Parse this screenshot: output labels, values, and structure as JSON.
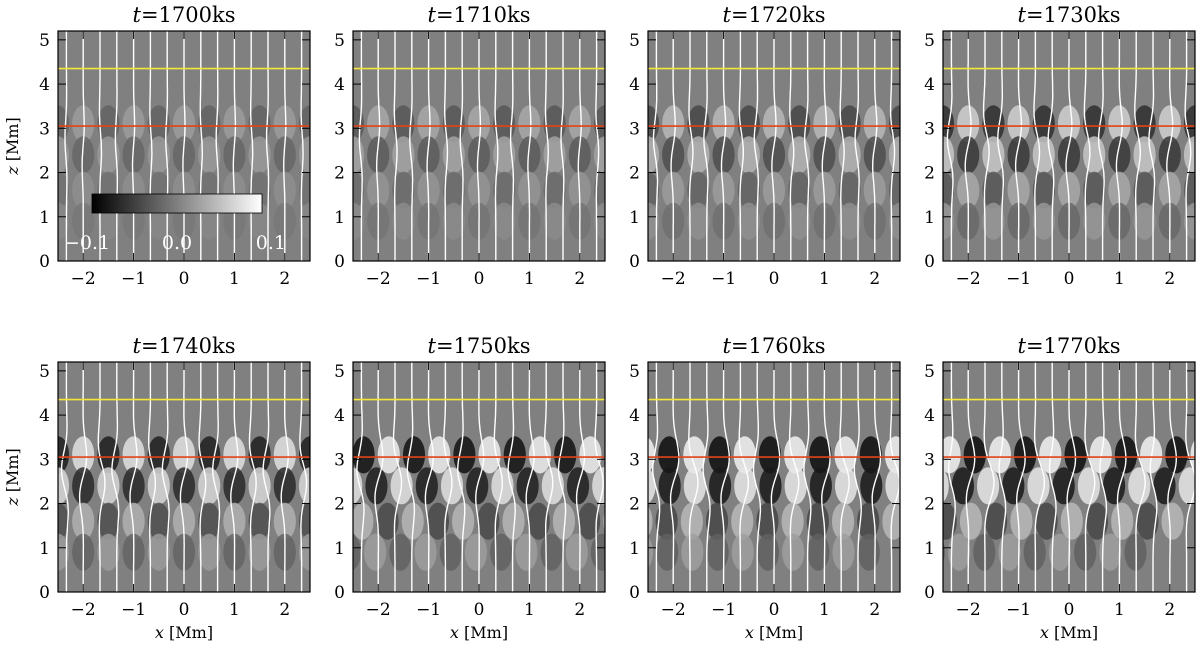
{
  "figure": {
    "xlabel_var": "x",
    "xlabel_unit": "[Mm]",
    "ylabel_var": "z",
    "ylabel_unit": "[Mm]",
    "colorbar": {
      "ticks": [
        "−0.1",
        "0.0",
        "0.1"
      ],
      "range": [
        -0.1,
        0.1
      ]
    },
    "colors": {
      "yellow_line": "#f5e63a",
      "red_line": "#e0451a",
      "background": "#808080",
      "field_lines": "#ffffff"
    }
  },
  "chart_data": [
    {
      "type": "heatmap",
      "title_var": "t",
      "title_value": "=1700ks",
      "t_ks": 1700,
      "xlim": [
        -2.5,
        2.5
      ],
      "ylim": [
        0,
        5.2
      ],
      "xticks": [
        "−2",
        "−1",
        "0",
        "1",
        "2"
      ],
      "yticks": [
        "0",
        "1",
        "2",
        "3",
        "4",
        "5"
      ],
      "hlines": [
        {
          "z": 4.35,
          "color": "yellow"
        },
        {
          "z": 3.05,
          "color": "red"
        }
      ],
      "amplitude": 0.25,
      "field_line_count": 15
    },
    {
      "type": "heatmap",
      "title_var": "t",
      "title_value": "=1710ks",
      "t_ks": 1710,
      "xlim": [
        -2.5,
        2.5
      ],
      "ylim": [
        0,
        5.2
      ],
      "xticks": [
        "−2",
        "−1",
        "0",
        "1",
        "2"
      ],
      "yticks": [
        "0",
        "1",
        "2",
        "3",
        "4",
        "5"
      ],
      "hlines": [
        {
          "z": 4.35,
          "color": "yellow"
        },
        {
          "z": 3.05,
          "color": "red"
        }
      ],
      "amplitude": 0.35,
      "field_line_count": 15
    },
    {
      "type": "heatmap",
      "title_var": "t",
      "title_value": "=1720ks",
      "t_ks": 1720,
      "xlim": [
        -2.5,
        2.5
      ],
      "ylim": [
        0,
        5.2
      ],
      "xticks": [
        "−2",
        "−1",
        "0",
        "1",
        "2"
      ],
      "yticks": [
        "0",
        "1",
        "2",
        "3",
        "4",
        "5"
      ],
      "hlines": [
        {
          "z": 4.35,
          "color": "yellow"
        },
        {
          "z": 3.05,
          "color": "red"
        }
      ],
      "amplitude": 0.5,
      "field_line_count": 15
    },
    {
      "type": "heatmap",
      "title_var": "t",
      "title_value": "=1730ks",
      "t_ks": 1730,
      "xlim": [
        -2.5,
        2.5
      ],
      "ylim": [
        0,
        5.2
      ],
      "xticks": [
        "−2",
        "−1",
        "0",
        "1",
        "2"
      ],
      "yticks": [
        "0",
        "1",
        "2",
        "3",
        "4",
        "5"
      ],
      "hlines": [
        {
          "z": 4.35,
          "color": "yellow"
        },
        {
          "z": 3.05,
          "color": "red"
        }
      ],
      "amplitude": 0.7,
      "field_line_count": 15
    },
    {
      "type": "heatmap",
      "title_var": "t",
      "title_value": "=1740ks",
      "t_ks": 1740,
      "xlim": [
        -2.5,
        2.5
      ],
      "ylim": [
        0,
        5.2
      ],
      "xticks": [
        "−2",
        "−1",
        "0",
        "1",
        "2"
      ],
      "yticks": [
        "0",
        "1",
        "2",
        "3",
        "4",
        "5"
      ],
      "hlines": [
        {
          "z": 4.35,
          "color": "yellow"
        },
        {
          "z": 3.05,
          "color": "red"
        }
      ],
      "amplitude": 0.85,
      "field_line_count": 15
    },
    {
      "type": "heatmap",
      "title_var": "t",
      "title_value": "=1750ks",
      "t_ks": 1750,
      "xlim": [
        -2.5,
        2.5
      ],
      "ylim": [
        0,
        5.2
      ],
      "xticks": [
        "−2",
        "−1",
        "0",
        "1",
        "2"
      ],
      "yticks": [
        "0",
        "1",
        "2",
        "3",
        "4",
        "5"
      ],
      "hlines": [
        {
          "z": 4.35,
          "color": "yellow"
        },
        {
          "z": 3.05,
          "color": "red"
        }
      ],
      "amplitude": 0.95,
      "field_line_count": 15
    },
    {
      "type": "heatmap",
      "title_var": "t",
      "title_value": "=1760ks",
      "t_ks": 1760,
      "xlim": [
        -2.5,
        2.5
      ],
      "ylim": [
        0,
        5.2
      ],
      "xticks": [
        "−2",
        "−1",
        "0",
        "1",
        "2"
      ],
      "yticks": [
        "0",
        "1",
        "2",
        "3",
        "4",
        "5"
      ],
      "hlines": [
        {
          "z": 4.35,
          "color": "yellow"
        },
        {
          "z": 3.05,
          "color": "red"
        }
      ],
      "amplitude": 1.0,
      "field_line_count": 15
    },
    {
      "type": "heatmap",
      "title_var": "t",
      "title_value": "=1770ks",
      "t_ks": 1770,
      "xlim": [
        -2.5,
        2.5
      ],
      "ylim": [
        0,
        5.2
      ],
      "xticks": [
        "−2",
        "−1",
        "0",
        "1",
        "2"
      ],
      "yticks": [
        "0",
        "1",
        "2",
        "3",
        "4",
        "5"
      ],
      "hlines": [
        {
          "z": 4.35,
          "color": "yellow"
        },
        {
          "z": 3.05,
          "color": "red"
        }
      ],
      "amplitude": 1.0,
      "field_line_count": 15
    }
  ]
}
